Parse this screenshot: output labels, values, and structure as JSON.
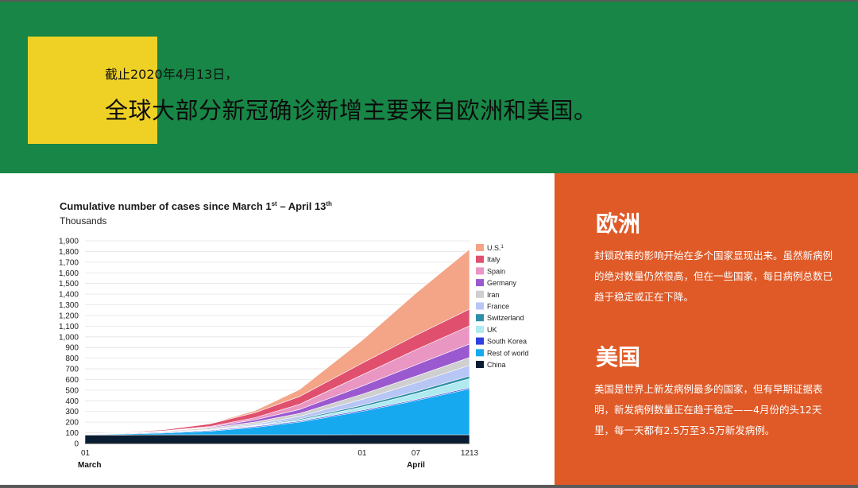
{
  "header": {
    "date_line": "截止2020年4月13日，",
    "headline": "全球大部分新冠确诊新增主要来自欧洲和美国。"
  },
  "sidebar": {
    "europe_title": "欧洲",
    "europe_text": "封锁政策的影响开始在多个国家显现出来。虽然新病例的绝对数量仍然很高，但在一些国家，每日病例总数已趋于稳定或正在下降。",
    "us_title": "美国",
    "us_text": "美国是世界上新发病例最多的国家，但有早期证据表明，新发病例数量正在趋于稳定——4月份的头12天里，每一天都有2.5万至3.5万新发病例。"
  },
  "chart_data": {
    "type": "area",
    "stacked": true,
    "title": "Cumulative number of cases since March 1",
    "title_sup1": "st",
    "title_mid": " – April 13",
    "title_sup2": "th",
    "ylabel": "Thousands",
    "ylim": [
      0,
      1900
    ],
    "yticks": [
      0,
      100,
      200,
      300,
      400,
      500,
      600,
      700,
      800,
      900,
      1000,
      1100,
      1200,
      1300,
      1400,
      1500,
      1600,
      1700,
      1800,
      1900
    ],
    "ytick_labels": [
      "0",
      "100",
      "200",
      "300",
      "400",
      "500",
      "600",
      "700",
      "800",
      "900",
      "1,000",
      "1,100",
      "1,200",
      "1,300",
      "1,400",
      "1,500",
      "1,600",
      "1,700",
      "1,800",
      "1,900"
    ],
    "x": [
      "Mar 01",
      "Mar 05",
      "Mar 10",
      "Mar 15",
      "Mar 20",
      "Mar 25",
      "Apr 01",
      "Apr 07",
      "Apr 13"
    ],
    "xtick_labels": [
      {
        "label": "01",
        "x": "Mar 01"
      },
      {
        "label": "01",
        "x": "Apr 01"
      },
      {
        "label": "07",
        "x": "Apr 07"
      },
      {
        "label": "1213",
        "x": "Apr 13"
      }
    ],
    "month_labels": [
      {
        "label": "March",
        "x": "Mar 01"
      },
      {
        "label": "April",
        "x": "Apr 07"
      }
    ],
    "legend_position": "right",
    "grid": true,
    "series": [
      {
        "name": "China",
        "color": "#0b1d33",
        "values": [
          80,
          80,
          81,
          81,
          81,
          81,
          82,
          82,
          82
        ]
      },
      {
        "name": "Rest of world",
        "color": "#16a9f0",
        "values": [
          3,
          8,
          18,
          35,
          70,
          120,
          220,
          320,
          430
        ]
      },
      {
        "name": "South Korea",
        "color": "#2f3fe0",
        "values": [
          4,
          6,
          7,
          8,
          9,
          9,
          10,
          10,
          11
        ]
      },
      {
        "name": "UK",
        "color": "#aeeaf0",
        "values": [
          0,
          0,
          1,
          1,
          5,
          10,
          30,
          55,
          85
        ]
      },
      {
        "name": "Switzerland",
        "color": "#2e8fa8",
        "values": [
          0,
          0,
          1,
          2,
          4,
          10,
          17,
          22,
          25
        ]
      },
      {
        "name": "France",
        "color": "#b7c6f4",
        "values": [
          0,
          0,
          2,
          5,
          13,
          25,
          55,
          80,
          100
        ]
      },
      {
        "name": "Iran",
        "color": "#cfcfcf",
        "values": [
          1,
          3,
          8,
          14,
          20,
          27,
          48,
          62,
          73
        ]
      },
      {
        "name": "Germany",
        "color": "#9b59d0",
        "values": [
          0,
          0,
          1,
          6,
          20,
          37,
          77,
          107,
          127
        ]
      },
      {
        "name": "Spain",
        "color": "#ea96c3",
        "values": [
          0,
          0,
          2,
          8,
          20,
          48,
          104,
          141,
          170
        ]
      },
      {
        "name": "Italy",
        "color": "#e0506e",
        "values": [
          1,
          4,
          10,
          25,
          47,
          74,
          110,
          135,
          157
        ]
      },
      {
        "name": "U.S.",
        "legend_sup": "1",
        "color": "#f4a487",
        "values": [
          0,
          0,
          1,
          3,
          19,
          65,
          215,
          395,
          560
        ]
      }
    ]
  }
}
